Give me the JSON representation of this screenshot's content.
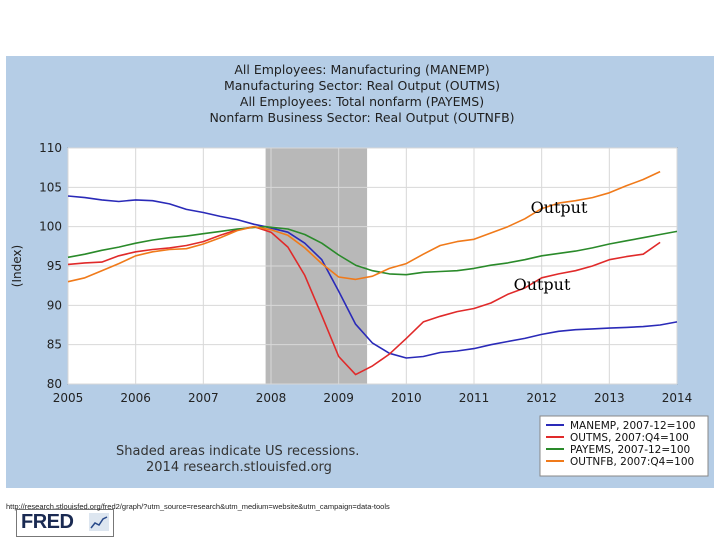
{
  "chart_data": {
    "type": "line",
    "titles": [
      "All Employees: Manufacturing (MANEMP)",
      "Manufacturing Sector: Real Output (OUTMS)",
      "All Employees: Total nonfarm (PAYEMS)",
      "Nonfarm Business Sector: Real Output (OUTNFB)"
    ],
    "ylabel": "(Index)",
    "xlabel": "",
    "ylim": [
      80,
      110
    ],
    "xlim": [
      2005,
      2014
    ],
    "yticks": [
      "80",
      "85",
      "90",
      "95",
      "100",
      "105",
      "110"
    ],
    "xticks": [
      "2005",
      "2006",
      "2007",
      "2008",
      "2009",
      "2010",
      "2011",
      "2012",
      "2013",
      "2014"
    ],
    "grid": true,
    "recession": {
      "start": 2007.92,
      "end": 2009.42
    },
    "note": [
      "Shaded areas indicate US recessions.",
      "2014 research.stlouisfed.org"
    ],
    "overlay_labels": [
      "Output",
      "Output"
    ],
    "series": [
      {
        "name": "MANEMP, 2007-12=100",
        "color": "#2a2ab8",
        "x": [
          2005.0,
          2005.25,
          2005.5,
          2005.75,
          2006.0,
          2006.25,
          2006.5,
          2006.75,
          2007.0,
          2007.25,
          2007.5,
          2007.75,
          2007.92,
          2008.25,
          2008.5,
          2008.75,
          2009.0,
          2009.25,
          2009.5,
          2009.75,
          2010.0,
          2010.25,
          2010.5,
          2010.75,
          2011.0,
          2011.25,
          2011.5,
          2011.75,
          2012.0,
          2012.25,
          2012.5,
          2012.75,
          2013.0,
          2013.25,
          2013.5,
          2013.75,
          2014.0
        ],
        "y": [
          103.9,
          103.7,
          103.4,
          103.2,
          103.4,
          103.3,
          102.9,
          102.2,
          101.8,
          101.3,
          100.9,
          100.3,
          100.0,
          99.3,
          97.9,
          95.8,
          91.8,
          87.6,
          85.2,
          83.9,
          83.3,
          83.5,
          84.0,
          84.2,
          84.5,
          85.0,
          85.4,
          85.8,
          86.3,
          86.7,
          86.9,
          87.0,
          87.1,
          87.2,
          87.3,
          87.5,
          87.9
        ]
      },
      {
        "name": "OUTMS, 2007:Q4=100",
        "color": "#e02a2a",
        "x": [
          2005.0,
          2005.25,
          2005.5,
          2005.75,
          2006.0,
          2006.25,
          2006.5,
          2006.75,
          2007.0,
          2007.25,
          2007.5,
          2007.75,
          2008.0,
          2008.25,
          2008.5,
          2008.75,
          2009.0,
          2009.25,
          2009.5,
          2009.75,
          2010.0,
          2010.25,
          2010.5,
          2010.75,
          2011.0,
          2011.25,
          2011.5,
          2011.75,
          2012.0,
          2012.25,
          2012.5,
          2012.75,
          2013.0,
          2013.25,
          2013.5,
          2013.75
        ],
        "y": [
          95.2,
          95.4,
          95.5,
          96.3,
          96.8,
          97.1,
          97.3,
          97.6,
          98.1,
          98.9,
          99.6,
          100.0,
          99.3,
          97.4,
          93.8,
          88.7,
          83.5,
          81.2,
          82.3,
          83.8,
          85.8,
          87.9,
          88.6,
          89.2,
          89.6,
          90.3,
          91.4,
          92.2,
          93.5,
          94.0,
          94.4,
          95.0,
          95.8,
          96.2,
          96.5,
          98.0
        ]
      },
      {
        "name": "PAYEMS, 2007-12=100",
        "color": "#2a8a2a",
        "x": [
          2005.0,
          2005.25,
          2005.5,
          2005.75,
          2006.0,
          2006.25,
          2006.5,
          2006.75,
          2007.0,
          2007.25,
          2007.5,
          2007.75,
          2007.92,
          2008.25,
          2008.5,
          2008.75,
          2009.0,
          2009.25,
          2009.5,
          2009.75,
          2010.0,
          2010.25,
          2010.5,
          2010.75,
          2011.0,
          2011.25,
          2011.5,
          2011.75,
          2012.0,
          2012.25,
          2012.5,
          2012.75,
          2013.0,
          2013.25,
          2013.5,
          2013.75,
          2014.0
        ],
        "y": [
          96.1,
          96.5,
          97.0,
          97.4,
          97.9,
          98.3,
          98.6,
          98.8,
          99.1,
          99.4,
          99.7,
          99.9,
          100.0,
          99.7,
          99.0,
          97.9,
          96.4,
          95.1,
          94.4,
          94.0,
          93.9,
          94.2,
          94.3,
          94.4,
          94.7,
          95.1,
          95.4,
          95.8,
          96.3,
          96.6,
          96.9,
          97.3,
          97.8,
          98.2,
          98.6,
          99.0,
          99.4
        ]
      },
      {
        "name": "OUTNFB, 2007:Q4=100",
        "color": "#f07a1a",
        "x": [
          2005.0,
          2005.25,
          2005.5,
          2005.75,
          2006.0,
          2006.25,
          2006.5,
          2006.75,
          2007.0,
          2007.25,
          2007.5,
          2007.75,
          2008.0,
          2008.25,
          2008.5,
          2008.75,
          2009.0,
          2009.25,
          2009.5,
          2009.75,
          2010.0,
          2010.25,
          2010.5,
          2010.75,
          2011.0,
          2011.25,
          2011.5,
          2011.75,
          2012.0,
          2012.25,
          2012.5,
          2012.75,
          2013.0,
          2013.25,
          2013.5,
          2013.75
        ],
        "y": [
          93.0,
          93.5,
          94.4,
          95.3,
          96.3,
          96.8,
          97.1,
          97.2,
          97.8,
          98.6,
          99.5,
          100.0,
          99.6,
          98.9,
          97.3,
          95.3,
          93.6,
          93.3,
          93.7,
          94.7,
          95.3,
          96.5,
          97.6,
          98.1,
          98.4,
          99.2,
          100.0,
          101.0,
          102.3,
          103.0,
          103.3,
          103.7,
          104.3,
          105.2,
          106.0,
          107.0
        ]
      }
    ]
  },
  "branding": {
    "logo_text": "FRED",
    "footer_url": "http://research.stlouisfed.org/fred2/graph/?utm_source=research&utm_medium=website&utm_campaign=data-tools"
  }
}
